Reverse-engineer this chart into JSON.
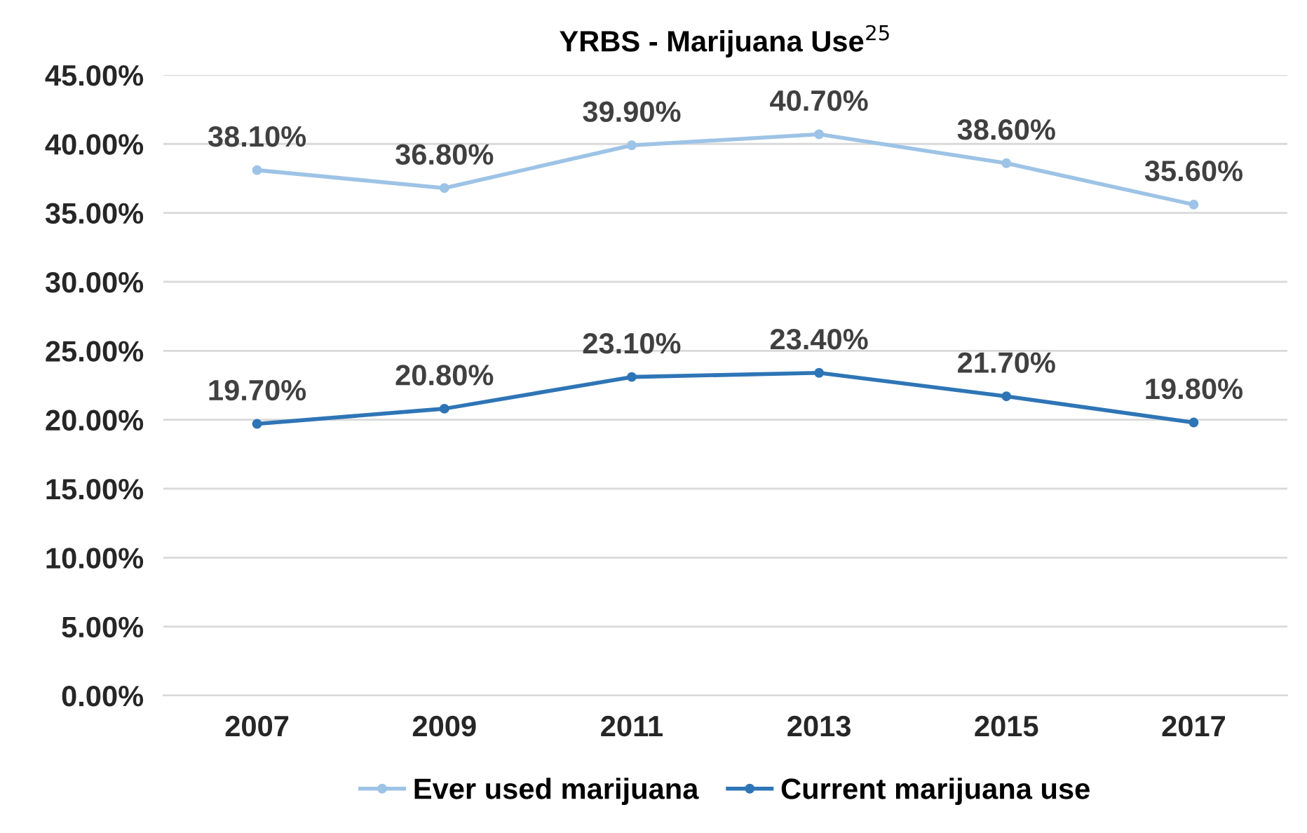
{
  "chart_data": {
    "type": "line",
    "title": "YRBS - Marijuana Use$^{25}$",
    "categories": [
      "2007",
      "2009",
      "2011",
      "2013",
      "2015",
      "2017"
    ],
    "series": [
      {
        "name": "Ever used marijuana",
        "color": "#9dc3e6",
        "values": [
          38.1,
          36.8,
          39.9,
          40.7,
          38.6,
          35.6
        ],
        "value_labels": [
          "38.10%",
          "36.80%",
          "39.90%",
          "40.70%",
          "38.60%",
          "35.60%"
        ]
      },
      {
        "name": "Current marijuana use",
        "color": "#2e75b6",
        "values": [
          19.7,
          20.8,
          23.1,
          23.4,
          21.7,
          19.8
        ],
        "value_labels": [
          "19.70%",
          "20.80%",
          "23.10%",
          "23.40%",
          "21.70%",
          "19.80%"
        ]
      }
    ],
    "ylim": [
      0,
      45
    ],
    "yticks": [
      {
        "value": 0,
        "label": "0.00%"
      },
      {
        "value": 5,
        "label": "5.00%"
      },
      {
        "value": 10,
        "label": "10.00%"
      },
      {
        "value": 15,
        "label": "15.00%"
      },
      {
        "value": 20,
        "label": "20.00%"
      },
      {
        "value": 25,
        "label": "25.00%"
      },
      {
        "value": 30,
        "label": "30.00%"
      },
      {
        "value": 35,
        "label": "35.00%"
      },
      {
        "value": 40,
        "label": "40.00%"
      },
      {
        "value": 45,
        "label": "45.00%"
      }
    ],
    "grid": "y",
    "legend": "bottom",
    "marker": "circle",
    "line_style": "solid"
  }
}
